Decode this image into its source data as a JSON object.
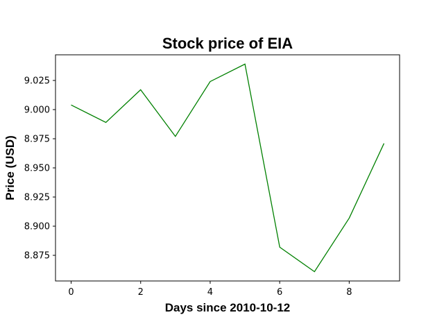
{
  "chart_data": {
    "type": "line",
    "title": "Stock price of EIA",
    "xlabel": "Days since 2010-10-12",
    "ylabel": "Price (USD)",
    "x": [
      0,
      1,
      2,
      3,
      4,
      5,
      6,
      7,
      8,
      9
    ],
    "series": [
      {
        "values": [
          9.004,
          8.989,
          9.017,
          8.977,
          9.024,
          9.039,
          8.882,
          8.861,
          8.907,
          8.971
        ],
        "color": "#008000"
      }
    ],
    "xlim": [
      -0.45,
      9.45
    ],
    "ylim": [
      8.853,
      9.047
    ],
    "xticks": [
      0,
      2,
      4,
      6,
      8
    ],
    "xtick_labels": [
      "0",
      "2",
      "4",
      "6",
      "8"
    ],
    "yticks": [
      8.875,
      8.9,
      8.925,
      8.95,
      8.975,
      9.0,
      9.025
    ],
    "ytick_labels": [
      "8.875",
      "8.900",
      "8.925",
      "8.950",
      "8.975",
      "9.000",
      "9.025"
    ],
    "grid": false,
    "legend": false
  }
}
